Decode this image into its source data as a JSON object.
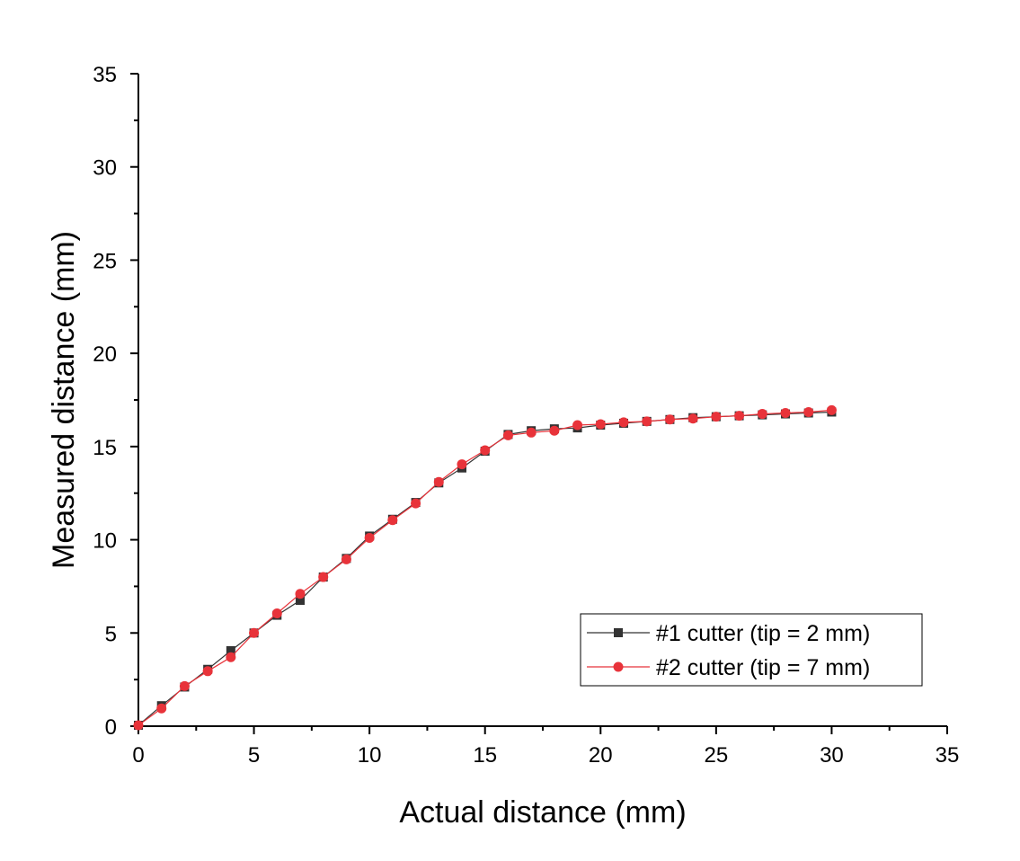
{
  "chart_data": {
    "type": "line",
    "xlabel": "Actual distance (mm)",
    "ylabel": "Measured distance (mm)",
    "xlim": [
      0,
      35
    ],
    "ylim": [
      0,
      35
    ],
    "x_ticks": [
      0,
      5,
      10,
      15,
      20,
      25,
      30,
      35
    ],
    "y_ticks": [
      0,
      5,
      10,
      15,
      20,
      25,
      30,
      35
    ],
    "x_tick_labels": [
      "0",
      "5",
      "10",
      "15",
      "20",
      "25",
      "30",
      "35"
    ],
    "y_tick_labels": [
      "0",
      "5",
      "10",
      "15",
      "20",
      "25",
      "30",
      "35"
    ],
    "grid": false,
    "legend_position": "bottom-right",
    "x": [
      0,
      1,
      2,
      3,
      4,
      5,
      6,
      7,
      8,
      9,
      10,
      11,
      12,
      13,
      14,
      15,
      16,
      17,
      18,
      19,
      20,
      21,
      22,
      23,
      24,
      25,
      26,
      27,
      28,
      29,
      30
    ],
    "series": [
      {
        "name": "#1 cutter (tip = 2 mm)",
        "color": "#333333",
        "marker": "square",
        "values": [
          0.05,
          1.1,
          2.1,
          3.05,
          4.05,
          5.0,
          5.95,
          6.75,
          8.0,
          9.0,
          10.2,
          11.1,
          12.0,
          13.05,
          13.85,
          14.75,
          15.65,
          15.85,
          15.95,
          16.0,
          16.15,
          16.25,
          16.35,
          16.45,
          16.55,
          16.6,
          16.65,
          16.7,
          16.75,
          16.8,
          16.85
        ]
      },
      {
        "name": "#2 cutter (tip = 7 mm)",
        "color": "#e8333a",
        "marker": "circle",
        "values": [
          0.05,
          0.95,
          2.15,
          2.95,
          3.7,
          5.0,
          6.05,
          7.1,
          8.0,
          8.95,
          10.1,
          11.05,
          11.95,
          13.1,
          14.05,
          14.8,
          15.6,
          15.75,
          15.85,
          16.15,
          16.2,
          16.3,
          16.35,
          16.45,
          16.5,
          16.6,
          16.65,
          16.75,
          16.8,
          16.85,
          16.95
        ]
      }
    ]
  }
}
